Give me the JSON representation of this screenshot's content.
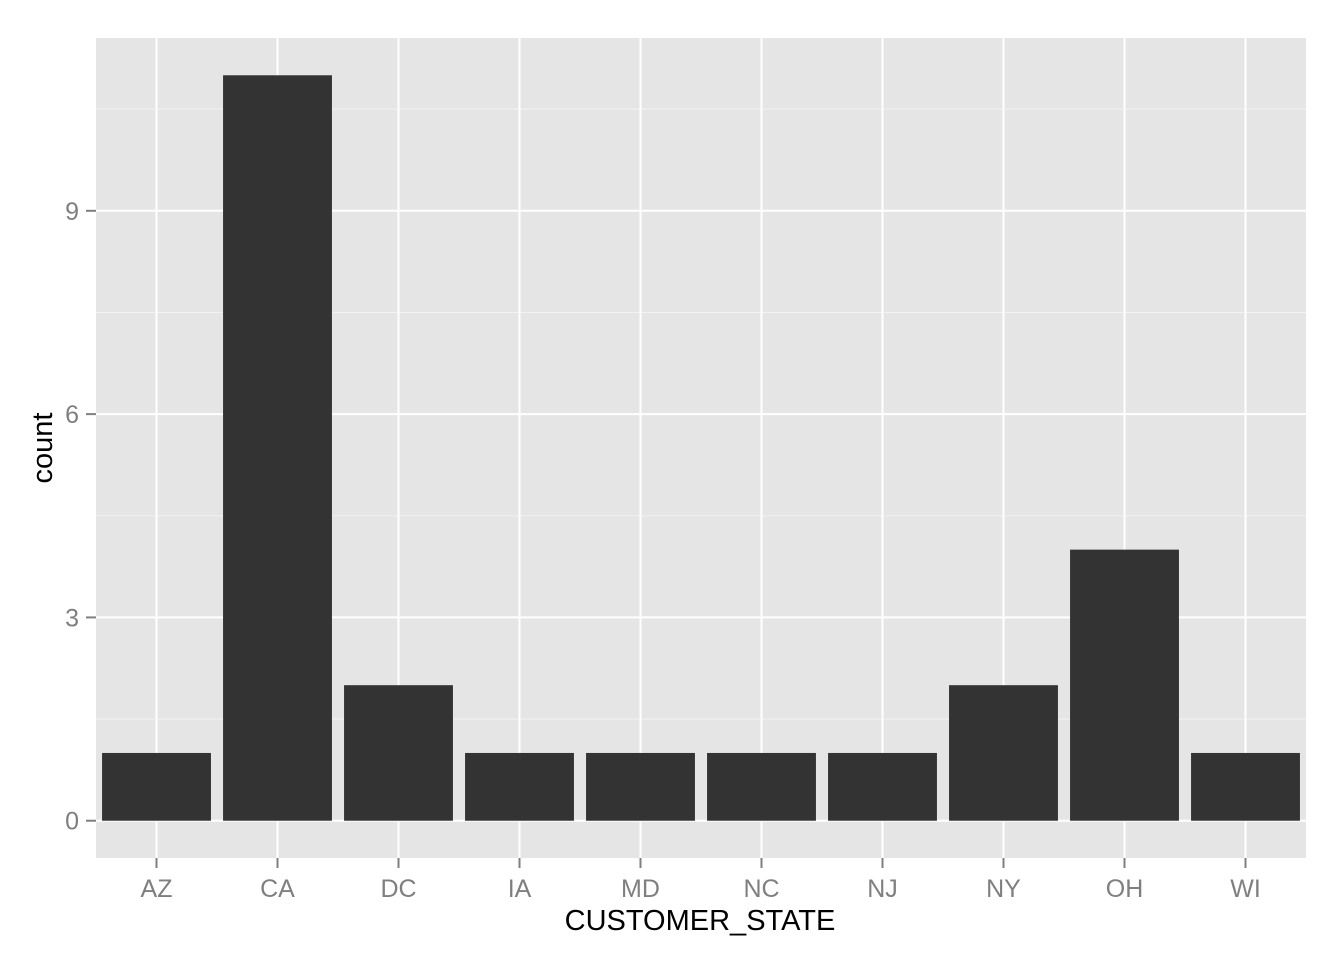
{
  "chart_data": {
    "type": "bar",
    "categories": [
      "AZ",
      "CA",
      "DC",
      "IA",
      "MD",
      "NC",
      "NJ",
      "NY",
      "OH",
      "WI"
    ],
    "values": [
      1,
      11,
      2,
      1,
      1,
      1,
      1,
      2,
      4,
      1
    ],
    "xlabel": "CUSTOMER_STATE",
    "ylabel": "count",
    "ylim": [
      -0.55,
      11.55
    ],
    "yticks": [
      0,
      3,
      6,
      9
    ],
    "grid": true,
    "legend": "none",
    "colors": {
      "panel_background": "#e5e5e5",
      "major_grid": "#ffffff",
      "minor_grid": "#f2f2f2",
      "bar_fill": "#333333",
      "tick_label": "#7f7f7f",
      "axis_title": "#000000"
    }
  }
}
